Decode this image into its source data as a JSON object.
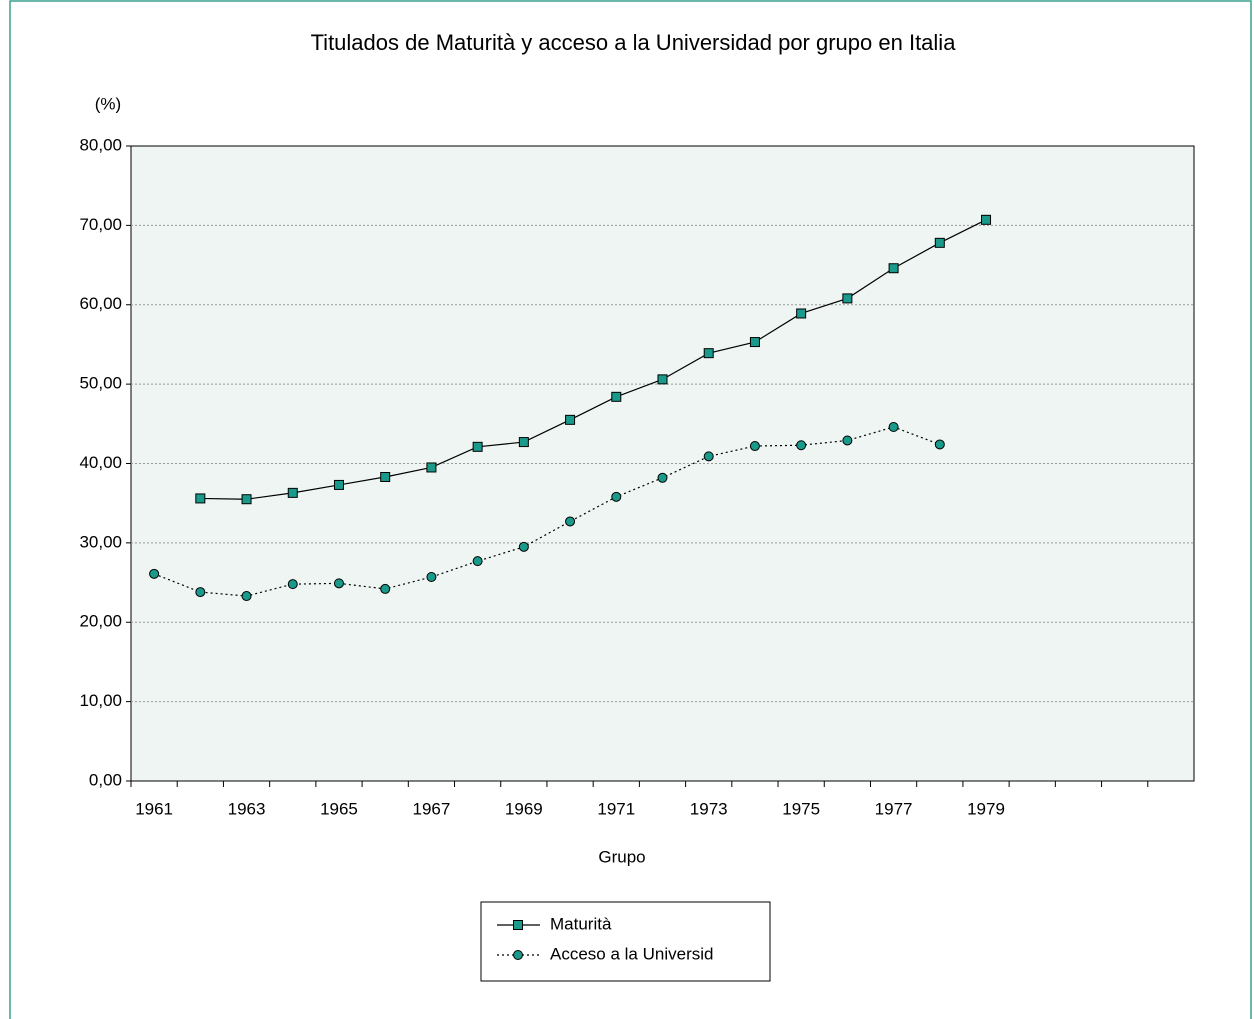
{
  "chart_data": {
    "type": "line",
    "title": "Titulados de Maturità y acceso a la Universidad por grupo en Italia",
    "y_label": "(%)",
    "x_label": "Grupo",
    "categories": [
      "1961",
      null,
      "1963",
      null,
      "1965",
      null,
      "1967",
      null,
      "1969",
      null,
      "1971",
      null,
      "1973",
      null,
      "1975",
      null,
      "1977",
      null,
      "1979",
      null,
      null,
      null,
      null
    ],
    "series": [
      {
        "name": "Maturità",
        "color": "#1a9a8a",
        "marker": "square",
        "line_style": "solid",
        "values": [
          null,
          35.6,
          35.5,
          36.3,
          37.3,
          38.3,
          39.5,
          42.1,
          42.7,
          45.5,
          48.4,
          50.6,
          53.9,
          55.3,
          58.9,
          60.8,
          64.6,
          67.8,
          70.7,
          null,
          null,
          null,
          null
        ]
      },
      {
        "name": "Acceso a la Universid",
        "color": "#1a9a8a",
        "marker": "circle",
        "line_style": "dotted",
        "values": [
          26.1,
          23.8,
          23.3,
          24.8,
          24.9,
          24.2,
          25.7,
          27.7,
          29.5,
          32.7,
          35.8,
          38.2,
          40.9,
          42.2,
          42.3,
          42.9,
          44.6,
          42.4,
          null,
          null,
          null,
          null,
          null
        ]
      }
    ],
    "ylim": [
      0,
      80
    ],
    "yticks": [
      {
        "value": 0,
        "label": "0,00"
      },
      {
        "value": 10,
        "label": "10,00"
      },
      {
        "value": 20,
        "label": "20,00"
      },
      {
        "value": 30,
        "label": "30,00"
      },
      {
        "value": 40,
        "label": "40,00"
      },
      {
        "value": 50,
        "label": "50,00"
      },
      {
        "value": 60,
        "label": "60,00"
      },
      {
        "value": 70,
        "label": "70,00"
      },
      {
        "value": 80,
        "label": "80,00"
      }
    ],
    "grid": true,
    "legend": "bottom"
  }
}
